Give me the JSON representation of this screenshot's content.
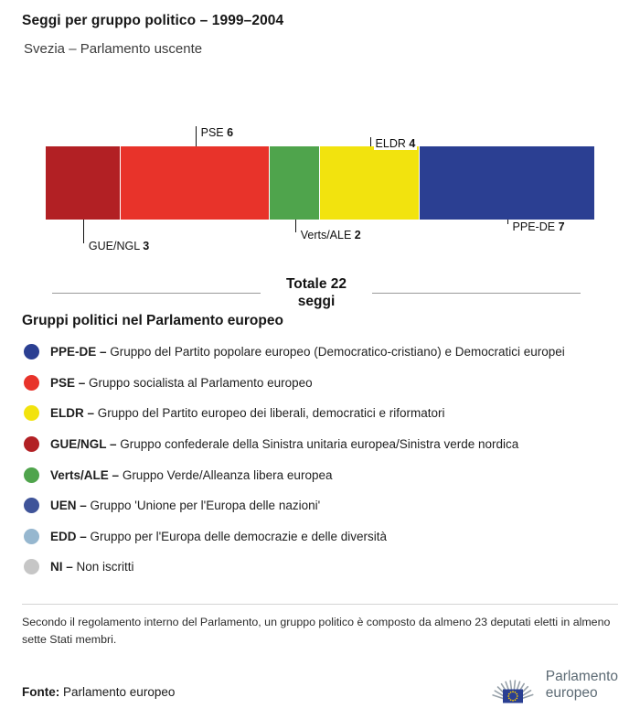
{
  "header": {
    "title": "Seggi per gruppo politico – 1999–2004",
    "subtitle": "Svezia – Parlamento uscente"
  },
  "chart_data": {
    "type": "bar",
    "variant": "stacked-horizontal-single-bar",
    "title": "Seggi per gruppo politico – 1999–2004",
    "subtitle": "Svezia – Parlamento uscente",
    "total_seats": 22,
    "total_line1": "Totale 22",
    "total_line2": "seggi",
    "segments": [
      {
        "label": "GUE/NGL",
        "value": 3,
        "color": "#b22024",
        "callout": {
          "side": "below",
          "line": 26
        }
      },
      {
        "label": "PSE",
        "value": 6,
        "color": "#e8332a",
        "callout": {
          "side": "above",
          "line": 22
        }
      },
      {
        "label": "Verts/ALE",
        "value": 2,
        "color": "#4fa44c",
        "callout": {
          "side": "below",
          "line": 14
        }
      },
      {
        "label": "ELDR",
        "value": 4,
        "color": "#f2e30e",
        "callout": {
          "side": "above",
          "line": 10
        }
      },
      {
        "label": "PPE-DE",
        "value": 7,
        "color": "#2b3f92",
        "callout": {
          "side": "below",
          "line": 5
        }
      }
    ]
  },
  "legend": {
    "heading": "Gruppi politici nel Parlamento europeo",
    "items": [
      {
        "abbr": "PPE-DE –",
        "desc": "Gruppo del Partito popolare europeo (Democratico-cristiano) e Democratici europei",
        "color": "#2b3f92"
      },
      {
        "abbr": "PSE –",
        "desc": "Gruppo socialista al Parlamento europeo",
        "color": "#e8332a"
      },
      {
        "abbr": "ELDR –",
        "desc": "Gruppo del Partito europeo dei liberali, democratici e riformatori",
        "color": "#f2e30e"
      },
      {
        "abbr": "GUE/NGL –",
        "desc": "Gruppo confederale della Sinistra unitaria europea/Sinistra verde nordica",
        "color": "#b22024"
      },
      {
        "abbr": "Verts/ALE –",
        "desc": "Gruppo Verde/Alleanza libera europea",
        "color": "#4fa44c"
      },
      {
        "abbr": "UEN –",
        "desc": "Gruppo 'Unione per l'Europa delle nazioni'",
        "color": "#3f5499"
      },
      {
        "abbr": "EDD –",
        "desc": "Gruppo per l'Europa delle democrazie e delle diversità",
        "color": "#96b7cf"
      },
      {
        "abbr": "NI –",
        "desc": "Non iscritti",
        "color": "#c6c6c6"
      }
    ]
  },
  "footer": {
    "note": "Secondo il regolamento interno del Parlamento, un gruppo politico è composto da almeno 23 deputati eletti in almeno sette Stati membri.",
    "source_label": "Fonte:",
    "source_text": "Parlamento europeo",
    "logo_line1": "Parlamento",
    "logo_line2": "europeo"
  }
}
